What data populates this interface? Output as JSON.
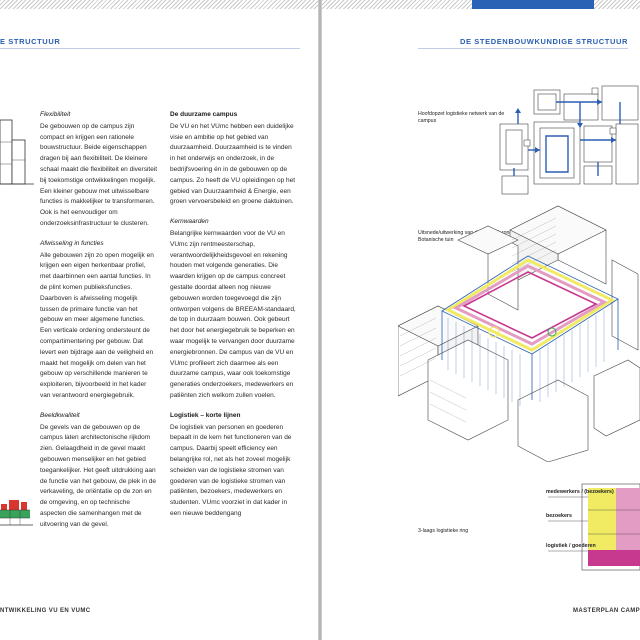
{
  "left_page": {
    "header": "E STRUCTUUR",
    "footer": "NTWIKKELING VU EN VUMC",
    "col1": {
      "h_flex": "Flexibiliteit",
      "p_flex": "De gebouwen op de campus zijn compact en krijgen een rationele bouwstructuur. Beide eigenschappen dragen bij aan flexibiliteit. De kleinere schaal maakt die flexibiliteit en diversiteit bij toekomstige ontwikkelingen mogelijk. Een kleiner gebouw met uitwisselbare functies is makkelijker te transformeren. Ook is het eenvoudiger om onderzoeksinfrastructuur te clusteren.",
      "h_afw": "Afwisseling in functies",
      "p_afw": "Alle gebouwen zijn zo open mogelijk en krijgen een eigen herkenbaar profiel, met daarbinnen een aantal functies. In de plint komen publieksfuncties. Daarboven is afwisseling mogelijk tussen de primaire functie van het gebouw en meer algemene functies. Een verticale ordening ondersteunt de compartimentering per gebouw. Dat levert een bijdrage aan de veiligheid en maakt het mogelijk om delen van het gebouw op verschillende manieren te exploiteren, bijvoorbeeld in het kader van verantwoord energiegebruik.",
      "h_beeld": "Beeldkwaliteit",
      "p_beeld": "De gevels van de gebouwen op de campus laten architectonische rijkdom zien. Gelaagdheid in de gevel maakt gebouwen menselijker en het gebied toegankelijker. Het geeft uitdrukking aan de functie van het gebouw, de plek in de verkaveling, de oriëntatie op de zon en de omgeving, en op technische aspecten die samenhangen met de uitvoering van de gevel."
    },
    "col2": {
      "h_duurzaam": "De duurzame campus",
      "p_duurzaam": "De VU en het VUmc hebben een duidelijke visie en ambitie op het gebied van duurzaamheid. Duurzaamheid is te vinden in het onderwijs en onderzoek, in de bedrijfsvoering én in de gebouwen op de campus. Zo heeft de VU opleidingen op het gebied van Duurzaamheid & Energie, een groen vervoersbeleid en groene daktuinen.",
      "h_kern": "Kernwaarden",
      "p_kern": "Belangrijke kernwaarden voor de VU en VUmc zijn rentmeesterschap, verantwoordelijkheidsgevoel en rekening houden met volgende generaties. Die waarden krijgen op de campus concreet gestalte doordat alleen nog nieuwe gebouwen worden toegevoegd die zijn ontworpen volgens de BREEAM-standaard, de top in duurzaam bouwen. Ook gebeurt het door het energiegebruik te beperken en waar mogelijk te vervangen door duurzame energiebronnen. De campus van de VU en VUmc profileert zich daarmee als een duurzame campus, waar ook toekomstige generaties onderzoekers, medewerkers en patiënten zich welkom zullen voelen.",
      "h_log": "Logistiek – korte lijnen",
      "p_log": "De logistiek van personen en goederen bepaalt in de kern het functioneren van de campus. Daarbij speelt efficiency een belangrijke rol, net als het zoveel mogelijk scheiden van de logistieke stromen van goederen van de logistieke stromen van patiënten, bezoekers, medewerkers en studenten. VUmc voorziet in dat kader in een nieuwe beddengang"
    }
  },
  "right_page": {
    "header": "DE STEDENBOUWKUNDIGE STRUCTUUR",
    "footer": "MASTERPLAN CAMP",
    "caption_top": "Hoofdopzet logistieke netwerk van de campus",
    "caption_mid": "Uitsnede/uitwerking van de logistiek rond de Botanische tuin",
    "caption_ring": "3-laags logistieke ring",
    "legend": {
      "medewerkers": "medewerkers / (bezoekers)",
      "bezoekers": "bezoekers",
      "logistiek": "logistiek / goederen"
    }
  },
  "colors": {
    "accent_blue": "#2b5fb3",
    "yellow": "#f1ea63",
    "magenta": "#c7388f",
    "pink": "#e39cc4",
    "green": "#3aa35b",
    "red": "#d9362f"
  }
}
